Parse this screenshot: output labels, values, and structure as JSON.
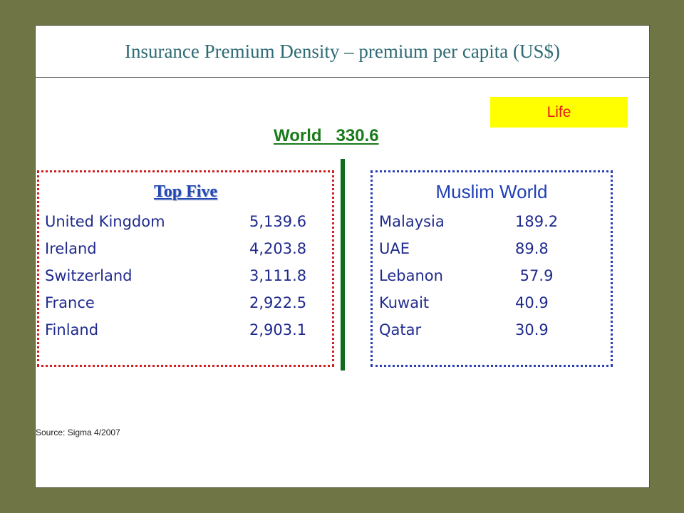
{
  "slide": {
    "title": "Insurance Premium Density – premium per capita (US$)",
    "badge": "Life",
    "world": "World   330.6",
    "source": "Source: Sigma 4/2007"
  },
  "top_five": {
    "heading": "Top Five",
    "rows": [
      {
        "country": "United Kingdom",
        "value": "5,139.6"
      },
      {
        "country": "Ireland",
        "value": "4,203.8"
      },
      {
        "country": "Switzerland",
        "value": "3,111.8"
      },
      {
        "country": "France",
        "value": "2,922.5"
      },
      {
        "country": "Finland",
        "value": "2,903.1"
      }
    ]
  },
  "muslim_world": {
    "heading": "Muslim World",
    "rows": [
      {
        "country": "Malaysia",
        "value": "189.2"
      },
      {
        "country": "UAE",
        "value": "89.8"
      },
      {
        "country": "Lebanon",
        "value": " 57.9"
      },
      {
        "country": "Kuwait",
        "value": "40.9"
      },
      {
        "country": "Qatar",
        "value": "30.9"
      }
    ]
  },
  "colors": {
    "background": "#6f7545",
    "title": "#2e6b74",
    "badge_bg": "#ffff00",
    "badge_text": "#e41a1a",
    "world_text": "#1a7b1a",
    "divider": "#0f6b1d",
    "left_border": "#d11f1f",
    "right_border": "#2a3fb3",
    "row_text": "#1f2a8c"
  }
}
